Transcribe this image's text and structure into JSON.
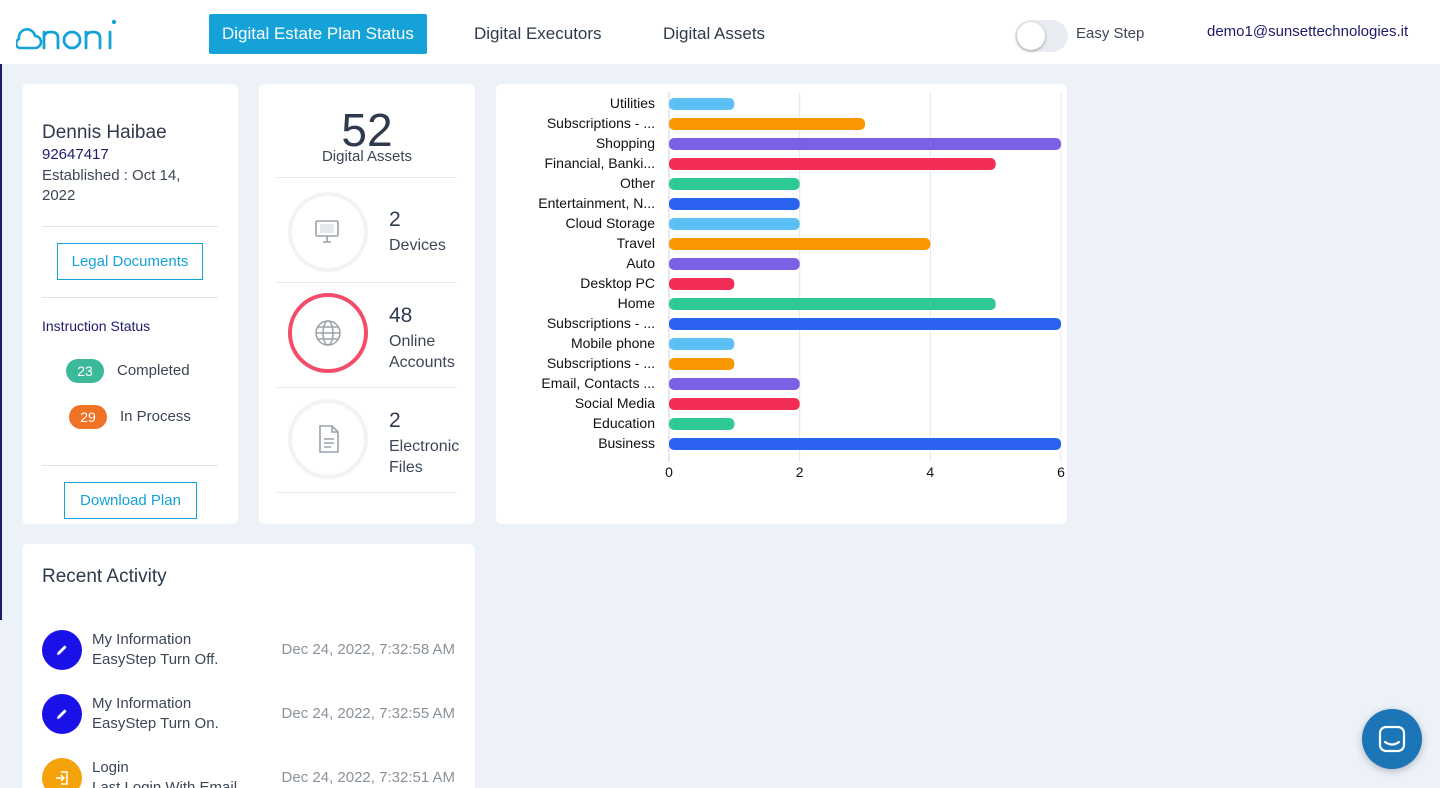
{
  "app": {
    "logo_text": "noni"
  },
  "nav": {
    "tabs": [
      {
        "label": "Digital Estate Plan Status",
        "active": true
      },
      {
        "label": "Digital Executors",
        "active": false
      },
      {
        "label": "Digital Assets",
        "active": false
      }
    ],
    "easy_step_label": "Easy Step",
    "easy_step_on": false,
    "user_email": "demo1@sunsettechnologies.it"
  },
  "profile": {
    "name": "Dennis Haibae",
    "id": "92647417",
    "established": "Established : Oct 14, 2022",
    "legal_documents_label": "Legal Documents",
    "instruction_status_title": "Instruction Status",
    "completed_count": "23",
    "completed_label": "Completed",
    "in_process_count": "29",
    "in_process_label": "In Process",
    "download_plan_label": "Download Plan"
  },
  "assets": {
    "total": "52",
    "total_label": "Digital Assets",
    "devices": {
      "count": "2",
      "label": "Devices",
      "fraction": 0.0
    },
    "online_accounts": {
      "count": "48",
      "label": "Online Accounts",
      "fraction": 1.0
    },
    "electronic_files": {
      "count": "2",
      "label": "Electronic Files",
      "fraction": 0.0
    }
  },
  "chart_data": {
    "type": "bar",
    "orientation": "horizontal",
    "title": "",
    "xlabel": "",
    "ylabel": "",
    "xlim": [
      0,
      6
    ],
    "xticks": [
      0,
      2,
      4,
      6
    ],
    "grid": true,
    "categories": [
      "Utilities",
      "Subscriptions - ...",
      "Shopping",
      "Financial, Banki...",
      "Other",
      "Entertainment, N...",
      "Cloud Storage",
      "Travel",
      "Auto",
      "Desktop PC",
      "Home",
      "Subscriptions - ...",
      "Mobile phone",
      "Subscriptions - ...",
      "Email, Contacts ...",
      "Social Media",
      "Education",
      "Business"
    ],
    "values": [
      1,
      3,
      6,
      5,
      2,
      2,
      2,
      4,
      2,
      1,
      5,
      6,
      1,
      1,
      2,
      2,
      1,
      6
    ],
    "colors": [
      "#5bc0f5",
      "#f99700",
      "#7b5fe6",
      "#f22e57",
      "#2ec997",
      "#2b62f0",
      "#5bc0f5",
      "#f99700",
      "#7b5fe6",
      "#f22e57",
      "#2ec997",
      "#2b62f0",
      "#5bc0f5",
      "#f99700",
      "#7b5fe6",
      "#f22e57",
      "#2ec997",
      "#2b62f0"
    ]
  },
  "recent_activity": {
    "title": "Recent Activity",
    "items": [
      {
        "title": "My Information",
        "detail": "EasyStep Turn Off.",
        "time": "Dec 24, 2022, 7:32:58 AM",
        "icon": "pencil-icon",
        "color": "#1a10e8"
      },
      {
        "title": "My Information",
        "detail": "EasyStep Turn On.",
        "time": "Dec 24, 2022, 7:32:55 AM",
        "icon": "pencil-icon",
        "color": "#1a10e8"
      },
      {
        "title": "Login",
        "detail": "Last Login With Email",
        "time": "Dec 24, 2022, 7:32:51 AM",
        "icon": "login-icon",
        "color": "#f5a30a"
      }
    ]
  },
  "colors": {
    "accent": "#14a2d8",
    "navy": "#1d1b6b",
    "completed": "#3cb99a",
    "in_process": "#f07224",
    "ring": "#f24e6b"
  }
}
